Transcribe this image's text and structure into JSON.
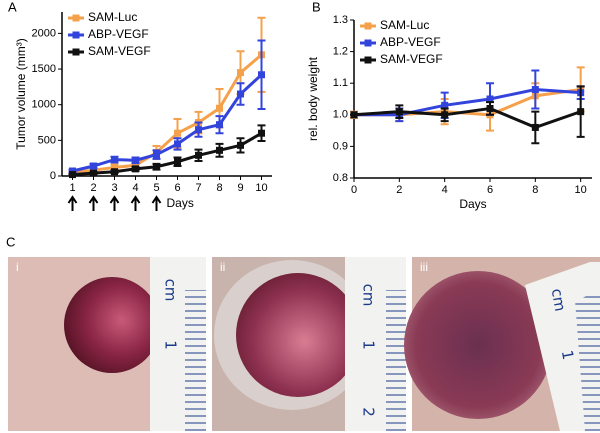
{
  "panel_labels": [
    "A",
    "B",
    "C"
  ],
  "photos": [
    {
      "label": "i",
      "ruler": [
        "cm",
        "1"
      ]
    },
    {
      "label": "ii",
      "ruler": [
        "cm",
        "1",
        "2"
      ]
    },
    {
      "label": "iii",
      "ruler": [
        "cm",
        "1"
      ]
    }
  ],
  "chart_data": [
    {
      "type": "line",
      "ylabel": "Tumor volume (mm³)",
      "xlabel": "Days",
      "x": [
        1,
        2,
        3,
        4,
        5,
        6,
        7,
        8,
        9,
        10
      ],
      "xlim": [
        0.5,
        10.5
      ],
      "xticks": [
        1,
        2,
        3,
        4,
        5,
        6,
        7,
        8,
        9,
        10
      ],
      "ylim": [
        0,
        2300
      ],
      "yticks": [
        0,
        500,
        1000,
        1500,
        2000
      ],
      "arrows_at": [
        1,
        2,
        3,
        4,
        5
      ],
      "series": [
        {
          "name": "SAM-Luc",
          "color": "#f5a04a",
          "values": [
            50,
            80,
            120,
            150,
            330,
            600,
            750,
            950,
            1450,
            1700
          ],
          "errors": [
            20,
            30,
            40,
            50,
            90,
            200,
            150,
            270,
            300,
            520
          ]
        },
        {
          "name": "ABP-VEGF",
          "color": "#3344dd",
          "values": [
            70,
            140,
            230,
            220,
            300,
            450,
            650,
            720,
            1150,
            1420
          ],
          "errors": [
            20,
            30,
            40,
            40,
            60,
            80,
            100,
            120,
            150,
            480
          ]
        },
        {
          "name": "SAM-VEGF",
          "color": "#111111",
          "values": [
            20,
            40,
            60,
            100,
            130,
            200,
            290,
            360,
            430,
            600
          ],
          "errors": [
            10,
            15,
            20,
            30,
            40,
            60,
            80,
            90,
            100,
            110
          ]
        }
      ]
    },
    {
      "type": "line",
      "ylabel": "rel. body weight",
      "xlabel": "Days",
      "x": [
        0,
        2,
        4,
        6,
        8,
        10
      ],
      "xlim": [
        0,
        10.5
      ],
      "xticks": [
        0,
        2,
        4,
        6,
        8,
        10
      ],
      "ylim": [
        0.8,
        1.3
      ],
      "yticks": [
        0.8,
        0.9,
        {
          "value": 1,
          "label": "1.0"
        },
        1.1,
        1.2,
        1.3
      ],
      "series": [
        {
          "name": "SAM-Luc",
          "color": "#f5a04a",
          "values": [
            1.0,
            1.0,
            1.01,
            1.0,
            1.06,
            1.08
          ],
          "errors": [
            0.01,
            0.02,
            0.04,
            0.05,
            0.04,
            0.07
          ]
        },
        {
          "name": "ABP-VEGF",
          "color": "#3344dd",
          "values": [
            1.0,
            1.0,
            1.03,
            1.05,
            1.08,
            1.07
          ],
          "errors": [
            0.0,
            0.02,
            0.04,
            0.05,
            0.06,
            0.02
          ]
        },
        {
          "name": "SAM-VEGF",
          "color": "#111111",
          "values": [
            1.0,
            1.01,
            1.0,
            1.02,
            0.96,
            1.01
          ],
          "errors": [
            0.0,
            0.02,
            0.02,
            0.02,
            0.05,
            0.08
          ]
        }
      ]
    }
  ]
}
